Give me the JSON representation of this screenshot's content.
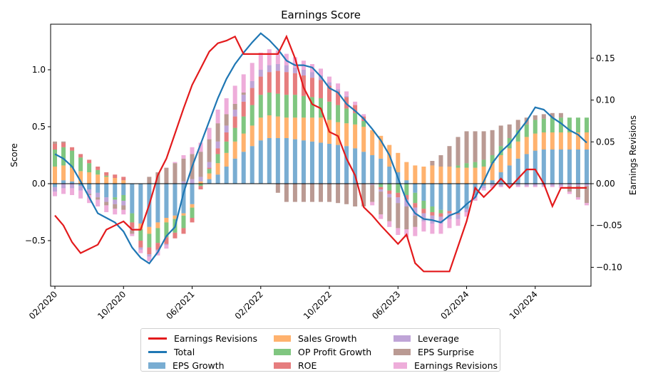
{
  "chart_data": {
    "type": "bar",
    "title": "Earnings Score",
    "ylabel_left": "Score",
    "ylabel_right": "Earnings Revisions",
    "ylim_left": [
      -0.9,
      1.4
    ],
    "ylim_right": [
      -0.1226,
      0.1907
    ],
    "yticks_left": [
      "−0.5",
      "0.0",
      "0.5",
      "1.0"
    ],
    "yticks_right": [
      "−0.10",
      "−0.05",
      "0.00",
      "0.05",
      "0.10",
      "0.15"
    ],
    "xtick_labels": [
      "02/2020",
      "10/2020",
      "06/2021",
      "02/2022",
      "10/2022",
      "06/2023",
      "02/2024",
      "10/2024"
    ],
    "xtick_index": [
      0,
      8,
      16,
      24,
      32,
      40,
      48,
      56
    ],
    "legend_position": "below",
    "grid": false,
    "dates": [
      "01/2020",
      "02/2020",
      "03/2020",
      "04/2020",
      "05/2020",
      "06/2020",
      "07/2020",
      "08/2020",
      "09/2020",
      "10/2020",
      "11/2020",
      "12/2020",
      "01/2021",
      "02/2021",
      "03/2021",
      "04/2021",
      "05/2021",
      "06/2021",
      "07/2021",
      "08/2021",
      "09/2021",
      "10/2021",
      "11/2021",
      "12/2021",
      "01/2022",
      "02/2022",
      "03/2022",
      "04/2022",
      "05/2022",
      "06/2022",
      "07/2022",
      "08/2022",
      "09/2022",
      "10/2022",
      "11/2022",
      "12/2022",
      "01/2023",
      "02/2023",
      "03/2023",
      "04/2023",
      "05/2023",
      "06/2023",
      "07/2023",
      "08/2023",
      "09/2023",
      "10/2023",
      "11/2023",
      "12/2023",
      "01/2024",
      "02/2024",
      "03/2024",
      "04/2024",
      "05/2024",
      "06/2024",
      "07/2024",
      "08/2024",
      "09/2024",
      "10/2024",
      "11/2024",
      "12/2024",
      "01/2025",
      "02/2025",
      "03/2025"
    ],
    "stack_series": [
      {
        "name": "EPS Growth",
        "color": "#1f77b4",
        "values": [
          -0.03,
          0.03,
          0.02,
          -0.02,
          -0.05,
          -0.08,
          -0.12,
          -0.12,
          -0.1,
          -0.26,
          -0.35,
          -0.38,
          -0.34,
          -0.3,
          -0.28,
          -0.26,
          -0.18,
          0.0,
          0.04,
          0.08,
          0.15,
          0.22,
          0.28,
          0.33,
          0.38,
          0.4,
          0.4,
          0.4,
          0.39,
          0.38,
          0.37,
          0.36,
          0.35,
          0.34,
          0.33,
          0.31,
          0.28,
          0.25,
          0.22,
          0.15,
          0.1,
          0.03,
          -0.08,
          -0.15,
          -0.2,
          -0.23,
          -0.24,
          -0.26,
          -0.22,
          -0.1,
          -0.02,
          0.03,
          0.1,
          0.16,
          0.22,
          0.26,
          0.29,
          0.3,
          0.3,
          0.3,
          0.3,
          0.3,
          0.3
        ]
      },
      {
        "name": "Sales Growth",
        "color": "#ff7f0e",
        "values": [
          0.15,
          0.13,
          0.12,
          0.11,
          0.1,
          0.08,
          0.06,
          0.05,
          0.03,
          0.0,
          -0.05,
          -0.06,
          -0.05,
          -0.04,
          -0.03,
          -0.02,
          -0.03,
          0.02,
          0.05,
          0.1,
          0.12,
          0.15,
          0.16,
          0.18,
          0.2,
          0.2,
          0.19,
          0.18,
          0.19,
          0.2,
          0.21,
          0.22,
          0.21,
          0.2,
          0.2,
          0.21,
          0.22,
          0.22,
          0.2,
          0.19,
          0.17,
          0.16,
          0.16,
          0.15,
          0.16,
          0.15,
          0.15,
          0.14,
          0.14,
          0.14,
          0.15,
          0.15,
          0.15,
          0.15,
          0.15,
          0.15,
          0.15,
          0.15,
          0.15,
          0.15,
          0.15,
          0.15,
          0.15
        ]
      },
      {
        "name": "OP Profit Growth",
        "color": "#2ca02c",
        "values": [
          0.15,
          0.16,
          0.15,
          0.12,
          0.08,
          0.04,
          0.01,
          -0.02,
          -0.05,
          -0.08,
          -0.1,
          -0.12,
          -0.13,
          -0.13,
          -0.12,
          -0.11,
          -0.09,
          -0.02,
          0.04,
          0.08,
          0.1,
          0.12,
          0.15,
          0.18,
          0.2,
          0.2,
          0.2,
          0.2,
          0.2,
          0.19,
          0.18,
          0.17,
          0.16,
          0.15,
          0.13,
          0.1,
          0.05,
          0.0,
          -0.03,
          -0.06,
          -0.08,
          -0.1,
          -0.09,
          -0.07,
          -0.05,
          -0.03,
          0.0,
          0.02,
          0.04,
          0.05,
          0.06,
          0.07,
          0.08,
          0.09,
          0.1,
          0.11,
          0.12,
          0.12,
          0.13,
          0.13,
          0.13,
          0.13,
          0.13
        ]
      },
      {
        "name": "ROE",
        "color": "#d62728",
        "values": [
          0.05,
          0.04,
          0.03,
          0.03,
          0.03,
          0.03,
          0.03,
          0.03,
          0.03,
          -0.05,
          -0.06,
          -0.06,
          -0.06,
          -0.06,
          -0.05,
          -0.05,
          -0.04,
          -0.03,
          0.01,
          0.05,
          0.08,
          0.1,
          0.13,
          0.15,
          0.16,
          0.18,
          0.2,
          0.2,
          0.19,
          0.18,
          0.17,
          0.16,
          0.14,
          0.12,
          0.1,
          0.07,
          0.04,
          0.0,
          -0.02,
          -0.03,
          -0.04,
          -0.04,
          -0.04,
          -0.04,
          -0.03,
          -0.03,
          -0.02,
          -0.01,
          0.0,
          0.0,
          0.0,
          0.0,
          0.0,
          0.0,
          0.0,
          0.0,
          0.0,
          0.0,
          0.0,
          0.0,
          0.0,
          0.0,
          0.0
        ]
      },
      {
        "name": "Leverage",
        "color": "#9467bd",
        "values": [
          -0.04,
          -0.04,
          -0.04,
          -0.04,
          -0.04,
          -0.04,
          -0.04,
          -0.04,
          -0.04,
          -0.02,
          -0.02,
          -0.02,
          -0.01,
          -0.01,
          0.0,
          0.02,
          0.04,
          0.04,
          0.05,
          0.06,
          0.06,
          0.06,
          0.06,
          0.06,
          0.06,
          0.06,
          0.06,
          0.06,
          0.05,
          0.05,
          0.05,
          0.04,
          0.03,
          0.02,
          0.01,
          0.0,
          0.0,
          -0.01,
          -0.02,
          -0.03,
          -0.05,
          -0.06,
          -0.07,
          -0.07,
          -0.07,
          -0.06,
          -0.05,
          -0.04,
          -0.03,
          -0.02,
          -0.02,
          -0.02,
          -0.02,
          -0.02,
          -0.02,
          -0.02,
          -0.02,
          -0.02,
          -0.02,
          -0.02,
          -0.02,
          -0.02,
          -0.02
        ]
      },
      {
        "name": "EPS Surprise",
        "color": "#8c564b",
        "values": [
          0.02,
          0.01,
          0.0,
          0.0,
          -0.01,
          -0.02,
          -0.03,
          -0.04,
          -0.04,
          -0.03,
          0.0,
          0.06,
          0.1,
          0.14,
          0.18,
          0.2,
          0.22,
          0.22,
          0.2,
          0.16,
          0.1,
          0.05,
          0.02,
          0.0,
          0.0,
          0.0,
          -0.08,
          -0.16,
          -0.16,
          -0.16,
          -0.16,
          -0.16,
          -0.16,
          -0.17,
          -0.18,
          -0.2,
          -0.2,
          -0.15,
          -0.2,
          -0.21,
          -0.22,
          -0.2,
          -0.1,
          0.0,
          0.04,
          0.1,
          0.18,
          0.25,
          0.28,
          0.27,
          0.25,
          0.22,
          0.18,
          0.12,
          0.09,
          0.06,
          0.04,
          0.04,
          0.04,
          0.04,
          -0.05,
          -0.1,
          -0.15
        ]
      },
      {
        "name": "Earnings Revisions",
        "color": "#e377c2",
        "values": [
          -0.04,
          -0.05,
          -0.06,
          -0.07,
          -0.07,
          -0.06,
          -0.06,
          -0.05,
          -0.04,
          -0.02,
          -0.03,
          -0.04,
          -0.04,
          -0.03,
          0.01,
          0.03,
          0.06,
          0.08,
          0.1,
          0.12,
          0.14,
          0.16,
          0.16,
          0.16,
          0.15,
          0.14,
          0.12,
          0.1,
          0.09,
          0.08,
          0.07,
          0.06,
          0.05,
          0.05,
          0.04,
          0.03,
          0.02,
          -0.03,
          -0.04,
          -0.05,
          -0.06,
          -0.07,
          -0.08,
          -0.09,
          -0.09,
          -0.09,
          -0.08,
          -0.06,
          -0.04,
          -0.03,
          -0.02,
          -0.02,
          -0.01,
          -0.01,
          -0.01,
          -0.01,
          -0.01,
          -0.01,
          -0.01,
          -0.02,
          -0.02,
          -0.02,
          -0.02
        ]
      }
    ],
    "line_series": [
      {
        "name": "Total",
        "color": "#1f77b4",
        "axis": "left",
        "values": [
          0.26,
          0.22,
          0.15,
          0.02,
          -0.12,
          -0.26,
          -0.3,
          -0.34,
          -0.42,
          -0.56,
          -0.65,
          -0.7,
          -0.6,
          -0.46,
          -0.38,
          -0.08,
          0.15,
          0.35,
          0.55,
          0.75,
          0.92,
          1.05,
          1.15,
          1.24,
          1.32,
          1.26,
          1.18,
          1.08,
          1.04,
          1.04,
          1.02,
          0.94,
          0.84,
          0.8,
          0.7,
          0.64,
          0.57,
          0.48,
          0.38,
          0.25,
          0.05,
          -0.15,
          -0.26,
          -0.31,
          -0.32,
          -0.34,
          -0.28,
          -0.25,
          -0.18,
          -0.12,
          0.02,
          0.18,
          0.28,
          0.35,
          0.45,
          0.55,
          0.67,
          0.65,
          0.58,
          0.53,
          0.47,
          0.43,
          0.36
        ]
      },
      {
        "name": "Earnings Revisions",
        "color": "#e31a1c",
        "axis": "right",
        "values": [
          -0.038,
          -0.05,
          -0.07,
          -0.083,
          -0.078,
          -0.073,
          -0.055,
          -0.05,
          -0.045,
          -0.055,
          -0.055,
          -0.025,
          0.01,
          0.03,
          0.06,
          0.09,
          0.118,
          0.138,
          0.158,
          0.168,
          0.171,
          0.176,
          0.155,
          0.155,
          0.155,
          0.155,
          0.155,
          0.176,
          0.15,
          0.115,
          0.095,
          0.09,
          0.062,
          0.057,
          0.03,
          0.01,
          -0.028,
          -0.038,
          -0.05,
          -0.061,
          -0.072,
          -0.061,
          -0.095,
          -0.105,
          -0.105,
          -0.105,
          -0.105,
          -0.075,
          -0.045,
          -0.005,
          -0.016,
          -0.006,
          0.006,
          -0.005,
          0.006,
          0.017,
          0.017,
          0.0,
          -0.027,
          -0.005,
          -0.005,
          -0.005,
          -0.005
        ]
      }
    ]
  },
  "legend": {
    "items": [
      {
        "label": "Earnings Revisions",
        "kind": "line",
        "color": "#e31a1c"
      },
      {
        "label": "Total",
        "kind": "line",
        "color": "#1f77b4"
      },
      {
        "label": "EPS Growth",
        "kind": "patch",
        "color": "#1f77b4"
      },
      {
        "label": "Sales Growth",
        "kind": "patch",
        "color": "#ff7f0e"
      },
      {
        "label": "OP Profit Growth",
        "kind": "patch",
        "color": "#2ca02c"
      },
      {
        "label": "ROE",
        "kind": "patch",
        "color": "#d62728"
      },
      {
        "label": "Leverage",
        "kind": "patch",
        "color": "#9467bd"
      },
      {
        "label": "EPS Surprise",
        "kind": "patch",
        "color": "#8c564b"
      },
      {
        "label": "Earnings Revisions",
        "kind": "patch",
        "color": "#e377c2"
      }
    ]
  }
}
